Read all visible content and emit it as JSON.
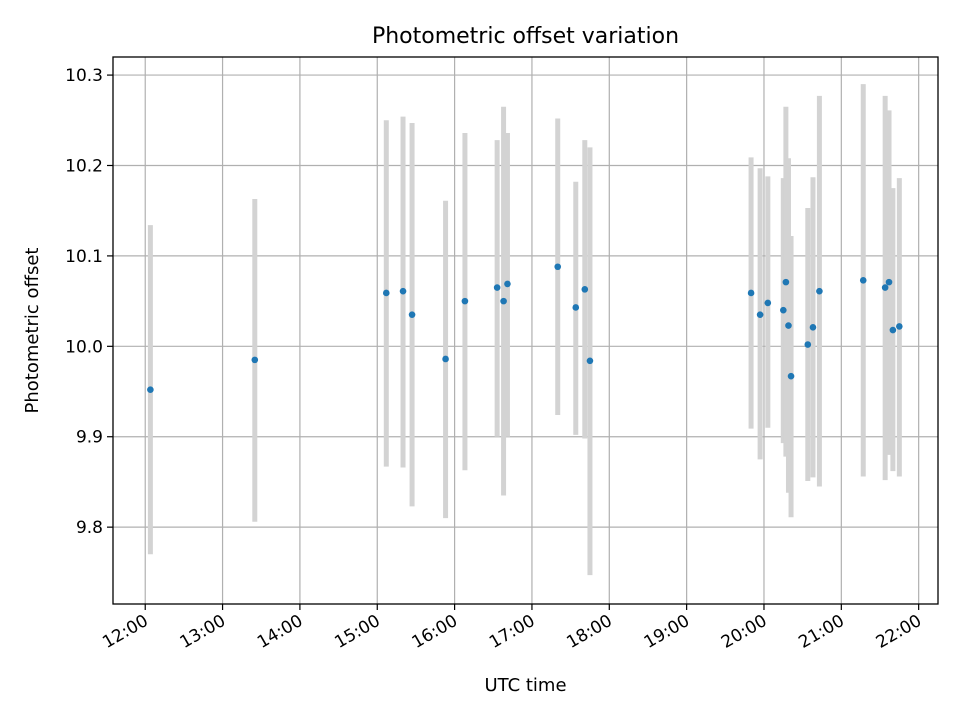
{
  "chart_data": {
    "type": "scatter",
    "title": "Photometric offset variation",
    "xlabel": "UTC time",
    "ylabel": "Photometric offset",
    "xlim": [
      "11:35",
      "22:15"
    ],
    "ylim": [
      9.715,
      10.32
    ],
    "xticks": [
      "12:00",
      "13:00",
      "14:00",
      "15:00",
      "16:00",
      "17:00",
      "18:00",
      "19:00",
      "20:00",
      "21:00",
      "22:00"
    ],
    "yticks": [
      "9.8",
      "9.9",
      "10.0",
      "10.1",
      "10.2",
      "10.3"
    ],
    "grid": true,
    "colors": {
      "point": "#1f77b4",
      "errorbar": "#d3d3d3",
      "grid": "#b0b0b0"
    },
    "points": [
      {
        "x": "12:04",
        "y": 9.952,
        "ylo": 9.77,
        "yhi": 10.134
      },
      {
        "x": "13:25",
        "y": 9.985,
        "ylo": 9.806,
        "yhi": 10.163
      },
      {
        "x": "15:07",
        "y": 10.059,
        "ylo": 9.867,
        "yhi": 10.25
      },
      {
        "x": "15:20",
        "y": 10.061,
        "ylo": 9.866,
        "yhi": 10.254
      },
      {
        "x": "15:27",
        "y": 10.035,
        "ylo": 9.823,
        "yhi": 10.247
      },
      {
        "x": "15:53",
        "y": 9.986,
        "ylo": 9.81,
        "yhi": 10.161
      },
      {
        "x": "16:08",
        "y": 10.05,
        "ylo": 9.863,
        "yhi": 10.236
      },
      {
        "x": "16:33",
        "y": 10.065,
        "ylo": 9.9,
        "yhi": 10.228
      },
      {
        "x": "16:38",
        "y": 10.05,
        "ylo": 9.835,
        "yhi": 10.265
      },
      {
        "x": "16:41",
        "y": 10.069,
        "ylo": 9.9,
        "yhi": 10.236
      },
      {
        "x": "17:20",
        "y": 10.088,
        "ylo": 9.924,
        "yhi": 10.252
      },
      {
        "x": "17:34",
        "y": 10.043,
        "ylo": 9.902,
        "yhi": 10.182
      },
      {
        "x": "17:41",
        "y": 10.063,
        "ylo": 9.898,
        "yhi": 10.228
      },
      {
        "x": "17:45",
        "y": 9.984,
        "ylo": 9.747,
        "yhi": 10.22
      },
      {
        "x": "19:50",
        "y": 10.059,
        "ylo": 9.909,
        "yhi": 10.209
      },
      {
        "x": "19:57",
        "y": 10.035,
        "ylo": 9.875,
        "yhi": 10.197
      },
      {
        "x": "20:03",
        "y": 10.048,
        "ylo": 9.91,
        "yhi": 10.188
      },
      {
        "x": "20:15",
        "y": 10.04,
        "ylo": 9.893,
        "yhi": 10.186
      },
      {
        "x": "20:17",
        "y": 10.071,
        "ylo": 9.878,
        "yhi": 10.265
      },
      {
        "x": "20:19",
        "y": 10.023,
        "ylo": 9.838,
        "yhi": 10.208
      },
      {
        "x": "20:21",
        "y": 9.967,
        "ylo": 9.811,
        "yhi": 10.122
      },
      {
        "x": "20:34",
        "y": 10.002,
        "ylo": 9.851,
        "yhi": 10.153
      },
      {
        "x": "20:38",
        "y": 10.021,
        "ylo": 9.855,
        "yhi": 10.187
      },
      {
        "x": "20:43",
        "y": 10.061,
        "ylo": 9.845,
        "yhi": 10.277
      },
      {
        "x": "21:17",
        "y": 10.073,
        "ylo": 9.856,
        "yhi": 10.29
      },
      {
        "x": "21:34",
        "y": 10.065,
        "ylo": 9.852,
        "yhi": 10.277
      },
      {
        "x": "21:37",
        "y": 10.071,
        "ylo": 9.88,
        "yhi": 10.261
      },
      {
        "x": "21:40",
        "y": 10.018,
        "ylo": 9.862,
        "yhi": 10.175
      },
      {
        "x": "21:45",
        "y": 10.022,
        "ylo": 9.856,
        "yhi": 10.186
      }
    ]
  }
}
